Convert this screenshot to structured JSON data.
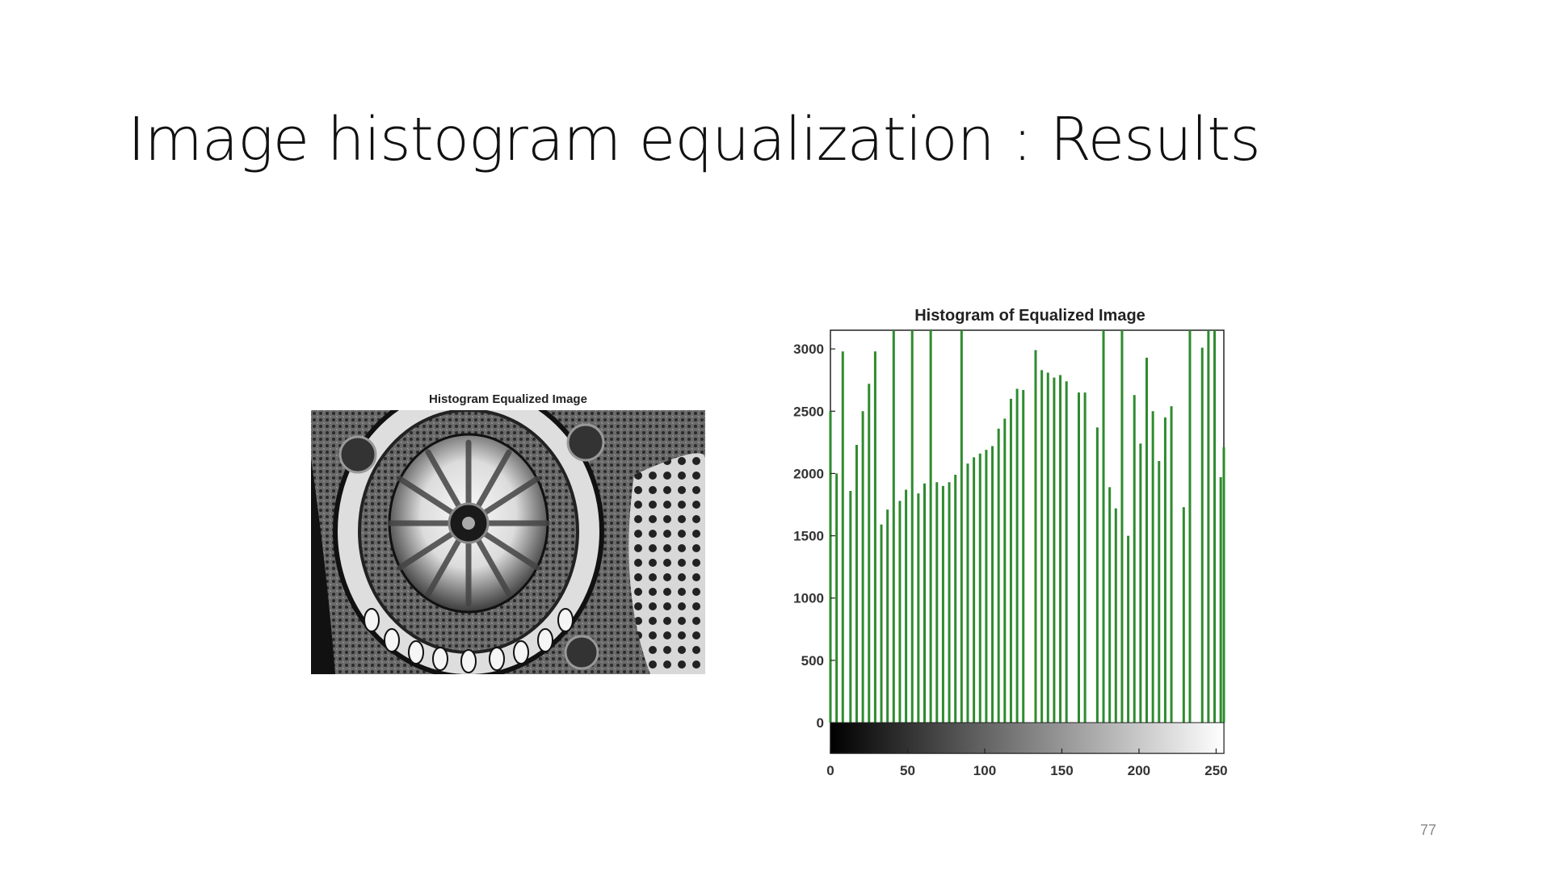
{
  "slide": {
    "title": "Image histogram equalization : Results",
    "page_number": "77"
  },
  "image_panel": {
    "title": "Histogram Equalized Image"
  },
  "colors": {
    "bar": "#2e8b2e",
    "axis": "#222222",
    "text": "#111111"
  },
  "chart_data": {
    "type": "bar",
    "title": "Histogram of Equalized Image",
    "xlabel": "",
    "ylabel": "",
    "xlim": [
      0,
      255
    ],
    "ylim": [
      0,
      3150
    ],
    "x_ticks": [
      0,
      50,
      100,
      150,
      200,
      250
    ],
    "y_ticks": [
      0,
      500,
      1000,
      1500,
      2000,
      2500,
      3000
    ],
    "colorbar": "grayscale gradient from black (0) to white (255)",
    "x": [
      0,
      4,
      8,
      13,
      17,
      21,
      25,
      29,
      33,
      37,
      41,
      45,
      49,
      53,
      57,
      61,
      65,
      69,
      73,
      77,
      81,
      85,
      89,
      93,
      97,
      101,
      105,
      109,
      113,
      117,
      121,
      125,
      133,
      137,
      141,
      145,
      149,
      153,
      161,
      165,
      173,
      177,
      181,
      185,
      189,
      193,
      197,
      201,
      205,
      209,
      213,
      217,
      221,
      229,
      233,
      241,
      245,
      249,
      253,
      255
    ],
    "values": [
      2500,
      2000,
      2980,
      1860,
      2230,
      2500,
      2720,
      2980,
      1590,
      1710,
      3150,
      1780,
      1870,
      3150,
      1840,
      1920,
      3150,
      1930,
      1900,
      1930,
      1990,
      3150,
      2080,
      2130,
      2160,
      2190,
      2220,
      2360,
      2440,
      2600,
      2680,
      2670,
      2990,
      2830,
      2810,
      2770,
      2790,
      2740,
      2650,
      2650,
      2370,
      3150,
      1890,
      1720,
      3150,
      1500,
      2630,
      2240,
      2930,
      2500,
      2100,
      2450,
      2540,
      1730,
      3150,
      3010,
      3150,
      3150,
      1970,
      2210
    ]
  }
}
